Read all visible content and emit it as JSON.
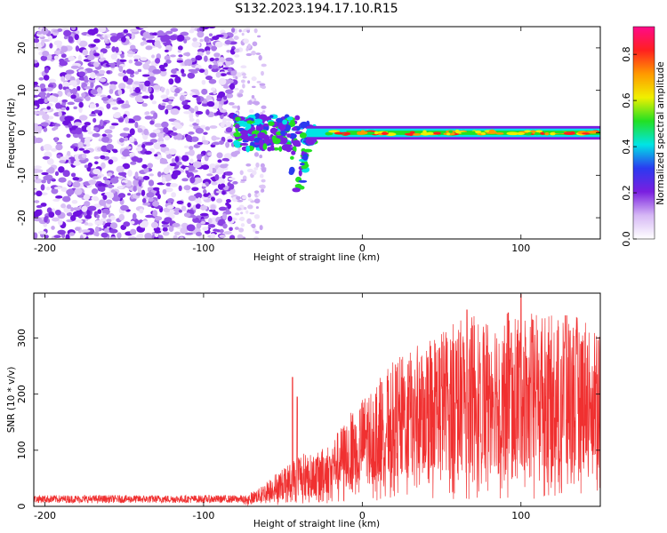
{
  "title": "S132.2023.194.17.10.R15",
  "chart_data": [
    {
      "type": "heatmap",
      "name": "spectrogram",
      "xlabel": "Height of straight line (km)",
      "ylabel": "Frequency (Hz)",
      "xlim": [
        -207,
        150
      ],
      "ylim": [
        -25,
        25
      ],
      "x_ticks": [
        -200,
        -100,
        0,
        100
      ],
      "y_ticks": [
        -20,
        -10,
        0,
        10,
        20
      ],
      "noise_region_x": [
        -207,
        -80
      ],
      "carrier_frequency": 0,
      "carrier_start_x": -80,
      "colorbar": {
        "label": "Normalized spectral amplitude",
        "range": [
          0,
          0.92
        ],
        "ticks": [
          0.0,
          0.2,
          0.4,
          0.6,
          0.8
        ],
        "colors": [
          "#ffffff",
          "#d6b8f5",
          "#7a1fe0",
          "#2b3af0",
          "#00e5e5",
          "#23e023",
          "#f0f000",
          "#ff9900",
          "#ff2020",
          "#ff0a8a"
        ]
      }
    },
    {
      "type": "line",
      "name": "snr",
      "xlabel": "Height of straight line (km)",
      "ylabel": "SNR (10 * v/v)",
      "xlim": [
        -207,
        150
      ],
      "ylim": [
        0,
        380
      ],
      "x_ticks": [
        -200,
        -100,
        0,
        100
      ],
      "y_ticks": [
        0,
        100,
        200,
        300
      ],
      "color": "#f03030",
      "envelope": [
        {
          "x": -207,
          "y": 12
        },
        {
          "x": -150,
          "y": 12
        },
        {
          "x": -100,
          "y": 12
        },
        {
          "x": -75,
          "y": 14
        },
        {
          "x": -65,
          "y": 25
        },
        {
          "x": -55,
          "y": 45
        },
        {
          "x": -45,
          "y": 60
        },
        {
          "x": -40,
          "y": 75
        },
        {
          "x": -30,
          "y": 70
        },
        {
          "x": -20,
          "y": 90
        },
        {
          "x": -10,
          "y": 120
        },
        {
          "x": 0,
          "y": 150
        },
        {
          "x": 10,
          "y": 175
        },
        {
          "x": 20,
          "y": 200
        },
        {
          "x": 30,
          "y": 215
        },
        {
          "x": 40,
          "y": 230
        },
        {
          "x": 50,
          "y": 245
        },
        {
          "x": 60,
          "y": 255
        },
        {
          "x": 70,
          "y": 262
        },
        {
          "x": 80,
          "y": 268
        },
        {
          "x": 90,
          "y": 272
        },
        {
          "x": 100,
          "y": 268
        },
        {
          "x": 110,
          "y": 265
        },
        {
          "x": 120,
          "y": 262
        },
        {
          "x": 130,
          "y": 262
        },
        {
          "x": 140,
          "y": 262
        },
        {
          "x": 150,
          "y": 262
        }
      ],
      "spikes": [
        {
          "x": -44,
          "y": 230
        },
        {
          "x": -41,
          "y": 195
        },
        {
          "x": 100,
          "y": 378
        },
        {
          "x": 66,
          "y": 350
        },
        {
          "x": 92,
          "y": 345
        },
        {
          "x": 128,
          "y": 340
        }
      ]
    }
  ]
}
